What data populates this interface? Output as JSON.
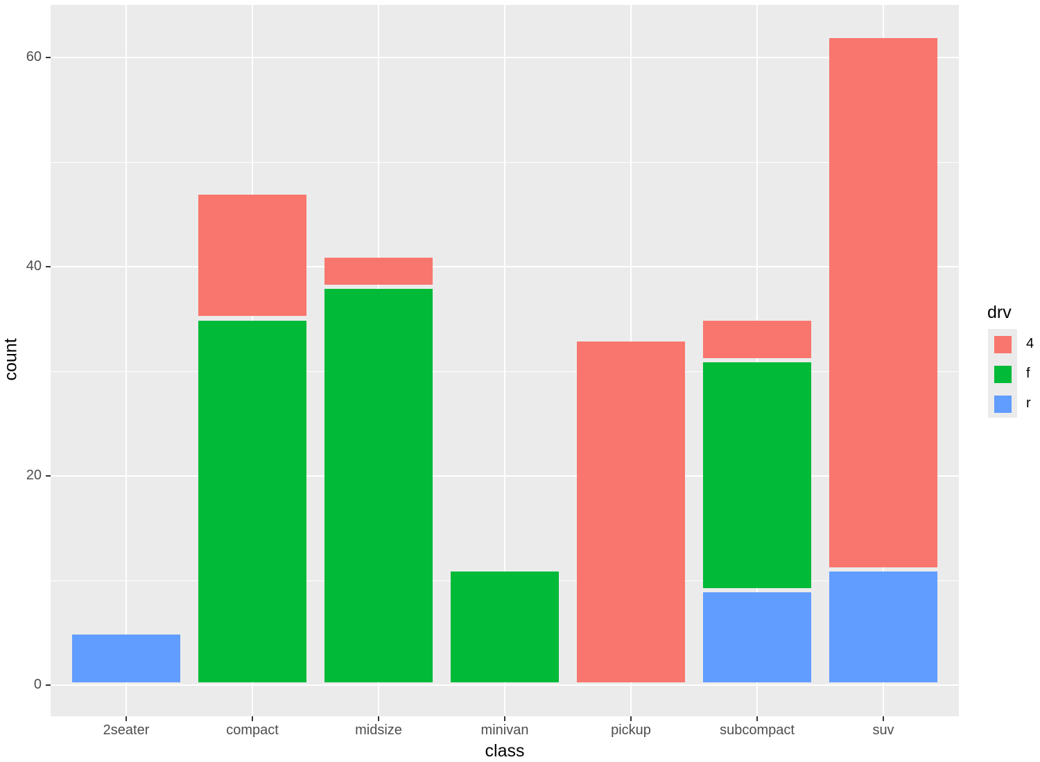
{
  "chart_data": {
    "type": "bar",
    "stacked": true,
    "title": "",
    "xlabel": "class",
    "ylabel": "count",
    "categories": [
      "2seater",
      "compact",
      "midsize",
      "minivan",
      "pickup",
      "subcompact",
      "suv"
    ],
    "series": [
      {
        "name": "4",
        "color": "#F8766D",
        "values": [
          0,
          12,
          3,
          0,
          33,
          4,
          51
        ]
      },
      {
        "name": "f",
        "color": "#00BA38",
        "values": [
          0,
          35,
          38,
          11,
          0,
          22,
          0
        ]
      },
      {
        "name": "r",
        "color": "#619CFF",
        "values": [
          5,
          0,
          0,
          0,
          0,
          9,
          11
        ]
      }
    ],
    "ylim": [
      0,
      65
    ],
    "yticks": [
      0,
      20,
      40,
      60
    ],
    "grid": true,
    "legend": {
      "title": "drv",
      "position": "right",
      "entries": [
        "4",
        "f",
        "r"
      ]
    }
  },
  "axes": {
    "x_title": "class",
    "y_title": "count",
    "y_tick_labels": [
      "0",
      "20",
      "40",
      "60"
    ],
    "x_tick_labels": [
      "2seater",
      "compact",
      "midsize",
      "minivan",
      "pickup",
      "subcompact",
      "suv"
    ]
  },
  "legend": {
    "title": "drv",
    "items": [
      {
        "label": "4",
        "color": "#F8766D"
      },
      {
        "label": "f",
        "color": "#00BA38"
      },
      {
        "label": "r",
        "color": "#619CFF"
      }
    ]
  }
}
